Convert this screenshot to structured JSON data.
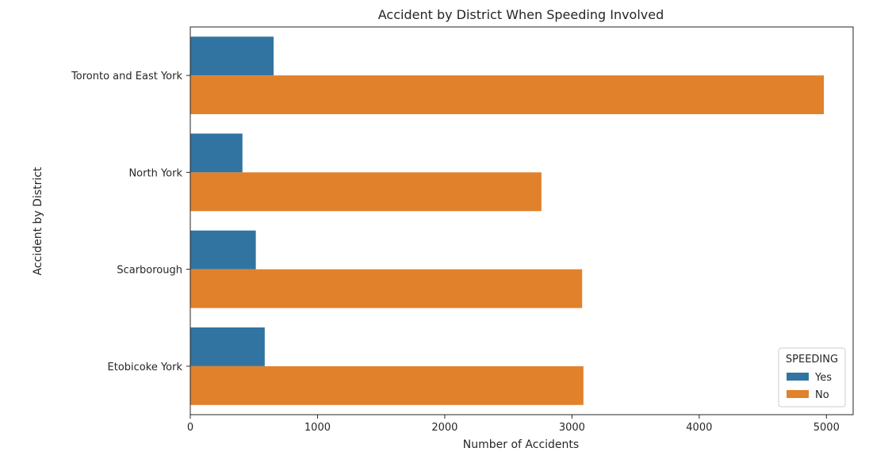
{
  "chart_data": {
    "type": "bar",
    "orientation": "horizontal",
    "title": "Accident by District When Speeding Involved",
    "xlabel": "Number of Accidents",
    "ylabel": "Accident by District",
    "categories": [
      "Toronto and East York",
      "North York",
      "Scarborough",
      "Etobicoke York"
    ],
    "series": [
      {
        "name": "Yes",
        "values": [
          655,
          410,
          515,
          585
        ],
        "color": "#3274a1"
      },
      {
        "name": "No",
        "values": [
          4980,
          2760,
          3080,
          3090
        ],
        "color": "#e1812c"
      }
    ],
    "xlim": [
      0,
      5210
    ],
    "xticks": [
      0,
      1000,
      2000,
      3000,
      4000,
      5000
    ],
    "xtick_labels": [
      "0",
      "1000",
      "2000",
      "3000",
      "4000",
      "5000"
    ],
    "grid": false,
    "legend": {
      "title": "SPEEDING",
      "position": "lower-right"
    }
  }
}
